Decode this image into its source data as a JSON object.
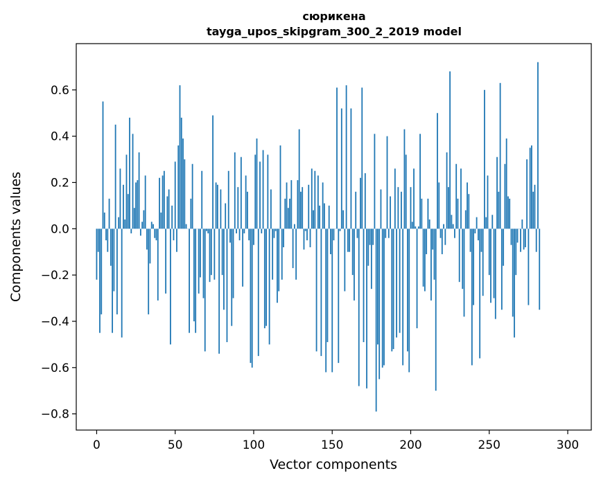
{
  "chart_data": {
    "type": "bar",
    "title_lines": [
      "сюрикена",
      "tayga_upos_skipgram_300_2_2019 model"
    ],
    "xlabel": "Vector components",
    "ylabel": "Components values",
    "xlim": [
      -13,
      315
    ],
    "ylim": [
      -0.87,
      0.8
    ],
    "xticks": [
      0,
      50,
      100,
      150,
      200,
      250,
      300
    ],
    "yticks": [
      -0.8,
      -0.6,
      -0.4,
      -0.2,
      0.0,
      0.2,
      0.4,
      0.6
    ],
    "ytick_labels": [
      "−0.8",
      "−0.6",
      "−0.4",
      "−0.2",
      "0.0",
      "0.2",
      "0.4",
      "0.6"
    ],
    "bar_color": "#1f77b4",
    "grid": false,
    "values": [
      -0.22,
      -0.1,
      -0.45,
      -0.37,
      0.55,
      0.07,
      -0.05,
      -0.1,
      0.13,
      -0.16,
      -0.45,
      -0.27,
      0.45,
      -0.37,
      0.05,
      0.26,
      -0.47,
      0.19,
      0.04,
      0.32,
      0.15,
      0.48,
      -0.02,
      0.41,
      0.09,
      0.2,
      0.21,
      0.33,
      -0.03,
      0.03,
      0.08,
      0.23,
      -0.09,
      -0.37,
      -0.15,
      0.03,
      0.02,
      -0.04,
      -0.05,
      -0.31,
      0.22,
      0.07,
      0.23,
      0.25,
      -0.28,
      0.14,
      0.17,
      -0.5,
      0.1,
      -0.05,
      0.29,
      -0.1,
      0.36,
      0.62,
      0.48,
      0.39,
      0.3,
      0.02,
      0.0,
      -0.45,
      0.13,
      0.28,
      -0.4,
      -0.45,
      0.0,
      -0.28,
      -0.21,
      0.25,
      -0.3,
      -0.53,
      -0.01,
      -0.02,
      -0.23,
      -0.2,
      0.49,
      -0.22,
      0.2,
      0.19,
      -0.54,
      0.17,
      -0.2,
      -0.35,
      0.11,
      -0.49,
      0.25,
      -0.06,
      -0.42,
      -0.3,
      0.33,
      -0.02,
      0.18,
      -0.05,
      0.31,
      -0.25,
      -0.02,
      0.23,
      0.16,
      -0.05,
      -0.58,
      -0.6,
      -0.07,
      0.32,
      0.39,
      -0.55,
      0.29,
      -0.02,
      0.34,
      -0.43,
      -0.42,
      0.32,
      -0.5,
      0.17,
      -0.22,
      -0.04,
      -0.01,
      -0.32,
      -0.27,
      0.36,
      -0.22,
      -0.08,
      0.13,
      0.2,
      0.09,
      0.13,
      0.21,
      -0.17,
      0.02,
      -0.22,
      0.21,
      0.43,
      0.16,
      0.18,
      -0.09,
      -0.01,
      -0.05,
      0.19,
      -0.08,
      0.26,
      0.08,
      0.25,
      -0.53,
      0.23,
      0.1,
      -0.55,
      0.2,
      0.11,
      -0.62,
      -0.49,
      0.1,
      -0.11,
      -0.62,
      -0.05,
      0.0,
      0.61,
      -0.58,
      -0.01,
      0.52,
      0.08,
      -0.27,
      0.62,
      -0.1,
      -0.1,
      0.52,
      -0.2,
      -0.31,
      0.16,
      -0.04,
      -0.68,
      0.22,
      0.61,
      -0.49,
      0.24,
      -0.69,
      -0.16,
      -0.07,
      -0.26,
      -0.07,
      0.41,
      -0.79,
      -0.5,
      -0.65,
      0.17,
      -0.6,
      -0.59,
      -0.04,
      0.4,
      -0.04,
      0.14,
      -0.53,
      -0.52,
      0.26,
      -0.47,
      0.18,
      -0.45,
      0.16,
      -0.59,
      0.43,
      0.32,
      -0.53,
      -0.62,
      0.18,
      0.03,
      0.26,
      0.01,
      -0.43,
      0.01,
      0.41,
      0.13,
      -0.25,
      -0.27,
      -0.11,
      0.13,
      0.04,
      -0.31,
      -0.09,
      -0.22,
      -0.7,
      0.5,
      0.2,
      -0.04,
      -0.11,
      0.02,
      -0.07,
      0.33,
      0.18,
      0.68,
      0.06,
      0.02,
      -0.04,
      0.28,
      0.13,
      -0.23,
      0.26,
      -0.26,
      -0.38,
      0.08,
      0.2,
      0.15,
      -0.1,
      -0.59,
      -0.33,
      -0.02,
      0.05,
      -0.05,
      -0.56,
      -0.1,
      -0.29,
      0.6,
      0.05,
      0.23,
      -0.2,
      -0.32,
      0.06,
      -0.3,
      -0.39,
      0.31,
      0.16,
      0.63,
      -0.35,
      -0.16,
      0.28,
      0.39,
      0.14,
      0.13,
      -0.07,
      -0.38,
      -0.47,
      -0.2,
      -0.06,
      0.0,
      -0.1,
      0.04,
      -0.09,
      -0.08,
      0.3,
      -0.33,
      0.35,
      0.36,
      0.16,
      0.19,
      -0.1,
      0.72,
      -0.35
    ]
  }
}
